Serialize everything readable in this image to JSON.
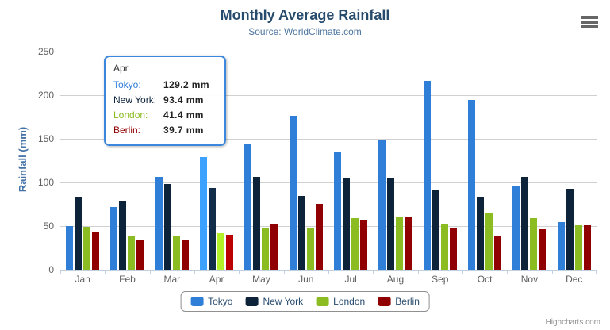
{
  "chart_data": {
    "type": "bar",
    "title": "Monthly Average Rainfall",
    "subtitle": "Source: WorldClimate.com",
    "ylabel": "Rainfall (mm)",
    "xlabel": "",
    "ylim": [
      0,
      250
    ],
    "ytick_interval": 50,
    "grid": true,
    "legend_position": "bottom-center",
    "highlighted_category": "Apr",
    "categories": [
      "Jan",
      "Feb",
      "Mar",
      "Apr",
      "May",
      "Jun",
      "Jul",
      "Aug",
      "Sep",
      "Oct",
      "Nov",
      "Dec"
    ],
    "series": [
      {
        "name": "Tokyo",
        "color": "#2f7ed8",
        "values": [
          49.9,
          71.5,
          106.4,
          129.2,
          144.0,
          176.0,
          135.6,
          148.5,
          216.4,
          194.1,
          95.6,
          54.4
        ]
      },
      {
        "name": "New York",
        "color": "#0d233a",
        "values": [
          83.6,
          78.8,
          98.5,
          93.4,
          106.0,
          84.5,
          105.0,
          104.3,
          91.2,
          83.5,
          106.6,
          92.3
        ]
      },
      {
        "name": "London",
        "color": "#8bbc21",
        "values": [
          48.9,
          38.8,
          39.3,
          41.4,
          47.0,
          48.3,
          59.0,
          59.6,
          52.4,
          65.2,
          59.3,
          51.2
        ]
      },
      {
        "name": "Berlin",
        "color": "#910000",
        "values": [
          42.4,
          33.2,
          34.5,
          39.7,
          52.6,
          75.5,
          57.4,
          60.4,
          47.6,
          39.1,
          46.8,
          51.1
        ]
      }
    ]
  },
  "tooltip": {
    "category": "Apr",
    "border_color": "#3a87dd",
    "rows": [
      {
        "label": "Tokyo:",
        "value": "129.2 mm",
        "color": "#2f7ed8"
      },
      {
        "label": "New York:",
        "value": "93.4 mm",
        "color": "#0d233a"
      },
      {
        "label": "London:",
        "value": "41.4 mm",
        "color": "#8bbc21"
      },
      {
        "label": "Berlin:",
        "value": "39.7 mm",
        "color": "#910000"
      }
    ]
  },
  "colors": {
    "title": "#274b6d",
    "subtitle": "#4d759e",
    "y_axis_title": "#4572A7",
    "axis_labels": "#606060",
    "gridline": "#d0d0d0",
    "axis_line": "#C0D0E0",
    "legend_text": "#274b6d"
  },
  "export_menu": {
    "icon": "hamburger-menu-icon"
  },
  "credits": {
    "label": "Highcharts.com"
  }
}
